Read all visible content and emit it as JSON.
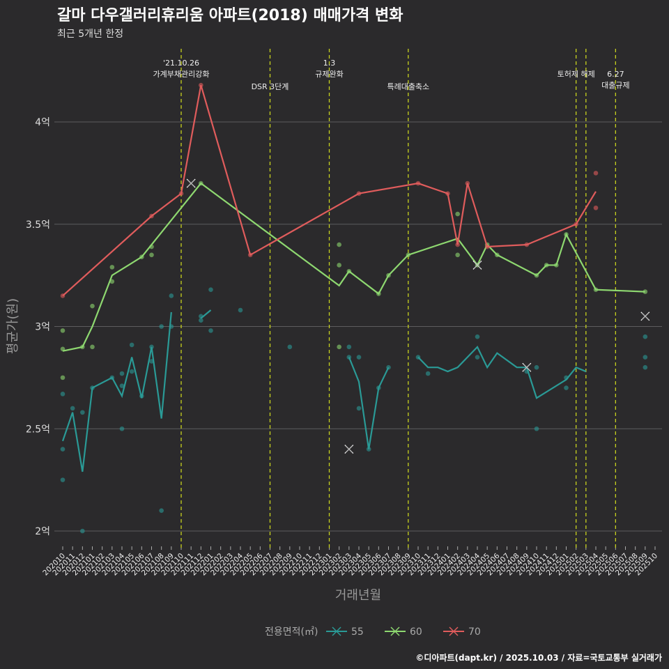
{
  "title": "갈마 다우갤러리휴리움 아파트(2018) 매매가격 변화",
  "subtitle": "최근 5개년 한정",
  "caption": "©디아파트(dapt.kr) / 2025.10.03 / 자료=국토교통부 실거래가",
  "chart_data": {
    "type": "line",
    "xlabel": "거래년월",
    "ylabel": "평균가(원)",
    "ylim": [
      1.9,
      4.3
    ],
    "yticks": [
      {
        "v": 2,
        "label": "2억"
      },
      {
        "v": 2.5,
        "label": "2.5억"
      },
      {
        "v": 3,
        "label": "3억"
      },
      {
        "v": 3.5,
        "label": "3.5억"
      },
      {
        "v": 4,
        "label": "4억"
      }
    ],
    "x_start": "202010",
    "x_categories": [
      "202010",
      "202011",
      "202012",
      "202101",
      "202102",
      "202103",
      "202104",
      "202105",
      "202106",
      "202107",
      "202108",
      "202109",
      "202110",
      "202111",
      "202112",
      "202201",
      "202202",
      "202203",
      "202204",
      "202205",
      "202206",
      "202207",
      "202208",
      "202209",
      "202210",
      "202211",
      "202212",
      "202301",
      "202302",
      "202303",
      "202304",
      "202305",
      "202306",
      "202307",
      "202308",
      "202309",
      "202310",
      "202311",
      "202312",
      "202401",
      "202402",
      "202403",
      "202404",
      "202405",
      "202406",
      "202407",
      "202408",
      "202409",
      "202410",
      "202411",
      "202412",
      "202501",
      "202502",
      "202503",
      "202504",
      "202505",
      "202506",
      "202507",
      "202508",
      "202509",
      "202510"
    ],
    "legend_title": "전용면적(㎡)",
    "legend_position": "bottom",
    "grid": true,
    "events": [
      {
        "month": "202110",
        "lines": [
          "'21.10.26",
          "가계부채관리강화"
        ],
        "row": 0
      },
      {
        "month": "202207",
        "lines": [
          "DSR 3단계"
        ],
        "row": 2
      },
      {
        "month": "202301",
        "lines": [
          "1.3",
          "규제완화"
        ],
        "row": 0
      },
      {
        "month": "202309",
        "lines": [
          "특례대출축소"
        ],
        "row": 2
      },
      {
        "month": "202502",
        "lines": [
          "토허제 해제"
        ],
        "row": 1
      },
      {
        "month": "202503",
        "lines": [],
        "row": 1
      },
      {
        "month": "202506",
        "lines": [
          "6.27",
          "대출규제"
        ],
        "row": 2
      }
    ],
    "series": [
      {
        "name": "55",
        "color": "#2a9a96",
        "segments": [
          [
            [
              0,
              2.44
            ],
            [
              1,
              2.58
            ],
            [
              2,
              2.29
            ],
            [
              3,
              2.7
            ],
            [
              5,
              2.75
            ],
            [
              6,
              2.66
            ],
            [
              7,
              2.85
            ],
            [
              8,
              2.65
            ],
            [
              9,
              2.9
            ],
            [
              10,
              2.55
            ],
            [
              11,
              3.07
            ]
          ],
          [
            [
              14,
              3.04
            ],
            [
              15,
              3.08
            ]
          ],
          [
            [
              29,
              2.85
            ],
            [
              30,
              2.73
            ],
            [
              31,
              2.4
            ],
            [
              32,
              2.7
            ],
            [
              33,
              2.8
            ]
          ],
          [
            [
              36,
              2.85
            ],
            [
              37,
              2.8
            ],
            [
              38,
              2.8
            ],
            [
              39,
              2.78
            ],
            [
              40,
              2.8
            ],
            [
              42,
              2.9
            ],
            [
              43,
              2.8
            ],
            [
              44,
              2.87
            ],
            [
              46,
              2.8
            ],
            [
              47,
              2.8
            ],
            [
              48,
              2.65
            ],
            [
              51,
              2.74
            ],
            [
              52,
              2.8
            ],
            [
              53,
              2.78
            ]
          ]
        ],
        "points": [
          [
            0,
            2.67
          ],
          [
            0,
            2.4
          ],
          [
            0,
            2.25
          ],
          [
            1,
            2.6
          ],
          [
            2,
            2.58
          ],
          [
            2,
            2.0
          ],
          [
            3,
            2.7
          ],
          [
            5,
            2.75
          ],
          [
            6,
            2.77
          ],
          [
            6,
            2.71
          ],
          [
            6,
            2.5
          ],
          [
            7,
            2.91
          ],
          [
            7,
            2.78
          ],
          [
            8,
            2.66
          ],
          [
            9,
            2.9
          ],
          [
            9,
            2.83
          ],
          [
            10,
            3.0
          ],
          [
            10,
            2.1
          ],
          [
            11,
            3.15
          ],
          [
            11,
            3.0
          ],
          [
            14,
            3.05
          ],
          [
            14,
            3.03
          ],
          [
            15,
            3.18
          ],
          [
            15,
            2.98
          ],
          [
            18,
            3.08
          ],
          [
            23,
            2.9
          ],
          [
            29,
            2.9
          ],
          [
            29,
            2.85
          ],
          [
            30,
            2.85
          ],
          [
            30,
            2.6
          ],
          [
            31,
            2.4
          ],
          [
            32,
            2.7
          ],
          [
            33,
            2.8
          ],
          [
            36,
            2.85
          ],
          [
            37,
            2.77
          ],
          [
            42,
            2.95
          ],
          [
            42,
            2.85
          ],
          [
            47,
            2.78
          ],
          [
            48,
            2.8
          ],
          [
            48,
            2.5
          ],
          [
            51,
            2.75
          ],
          [
            51,
            2.7
          ],
          [
            59,
            2.95
          ],
          [
            59,
            2.85
          ],
          [
            59,
            2.8
          ]
        ],
        "markers": [
          [
            29,
            2.4
          ],
          [
            47,
            2.8
          ]
        ]
      },
      {
        "name": "60",
        "color": "#8ed870",
        "segments": [
          [
            [
              0,
              2.88
            ],
            [
              2,
              2.9
            ],
            [
              3,
              3.0
            ],
            [
              5,
              3.25
            ],
            [
              8,
              3.34
            ],
            [
              14,
              3.7
            ],
            [
              28,
              3.2
            ],
            [
              29,
              3.27
            ],
            [
              32,
              3.16
            ],
            [
              33,
              3.25
            ],
            [
              35,
              3.35
            ],
            [
              40,
              3.43
            ],
            [
              42,
              3.3
            ],
            [
              43,
              3.4
            ],
            [
              44,
              3.35
            ],
            [
              48,
              3.25
            ],
            [
              49,
              3.3
            ],
            [
              50,
              3.3
            ],
            [
              51,
              3.45
            ],
            [
              54,
              3.18
            ],
            [
              59,
              3.17
            ]
          ]
        ],
        "points": [
          [
            0,
            2.98
          ],
          [
            0,
            2.89
          ],
          [
            0,
            2.75
          ],
          [
            2,
            2.9
          ],
          [
            3,
            3.1
          ],
          [
            3,
            2.9
          ],
          [
            5,
            3.29
          ],
          [
            5,
            3.22
          ],
          [
            8,
            3.34
          ],
          [
            9,
            3.39
          ],
          [
            9,
            3.35
          ],
          [
            14,
            3.7
          ],
          [
            28,
            3.4
          ],
          [
            28,
            3.3
          ],
          [
            28,
            2.9
          ],
          [
            29,
            3.27
          ],
          [
            32,
            3.16
          ],
          [
            33,
            3.25
          ],
          [
            35,
            3.35
          ],
          [
            40,
            3.55
          ],
          [
            40,
            3.35
          ],
          [
            42,
            3.3
          ],
          [
            43,
            3.4
          ],
          [
            44,
            3.35
          ],
          [
            48,
            3.25
          ],
          [
            49,
            3.3
          ],
          [
            50,
            3.3
          ],
          [
            51,
            3.45
          ],
          [
            54,
            3.18
          ],
          [
            59,
            3.17
          ]
        ],
        "markers": [
          [
            13,
            3.7
          ],
          [
            42,
            3.3
          ],
          [
            59,
            3.05
          ]
        ]
      },
      {
        "name": "70",
        "color": "#e05c5c",
        "segments": [
          [
            [
              0,
              3.15
            ],
            [
              9,
              3.54
            ],
            [
              12,
              3.65
            ],
            [
              14,
              4.18
            ],
            [
              19,
              3.35
            ],
            [
              30,
              3.65
            ],
            [
              36,
              3.7
            ],
            [
              39,
              3.65
            ],
            [
              40,
              3.4
            ],
            [
              41,
              3.7
            ],
            [
              43,
              3.39
            ],
            [
              47,
              3.4
            ],
            [
              52,
              3.5
            ],
            [
              54,
              3.66
            ]
          ]
        ],
        "points": [
          [
            0,
            3.15
          ],
          [
            9,
            3.54
          ],
          [
            12,
            3.65
          ],
          [
            14,
            4.18
          ],
          [
            19,
            3.35
          ],
          [
            30,
            3.65
          ],
          [
            36,
            3.7
          ],
          [
            39,
            3.65
          ],
          [
            40,
            3.4
          ],
          [
            41,
            3.7
          ],
          [
            43,
            3.39
          ],
          [
            47,
            3.4
          ],
          [
            52,
            3.5
          ],
          [
            54,
            3.75
          ],
          [
            54,
            3.58
          ]
        ],
        "markers": []
      }
    ]
  }
}
